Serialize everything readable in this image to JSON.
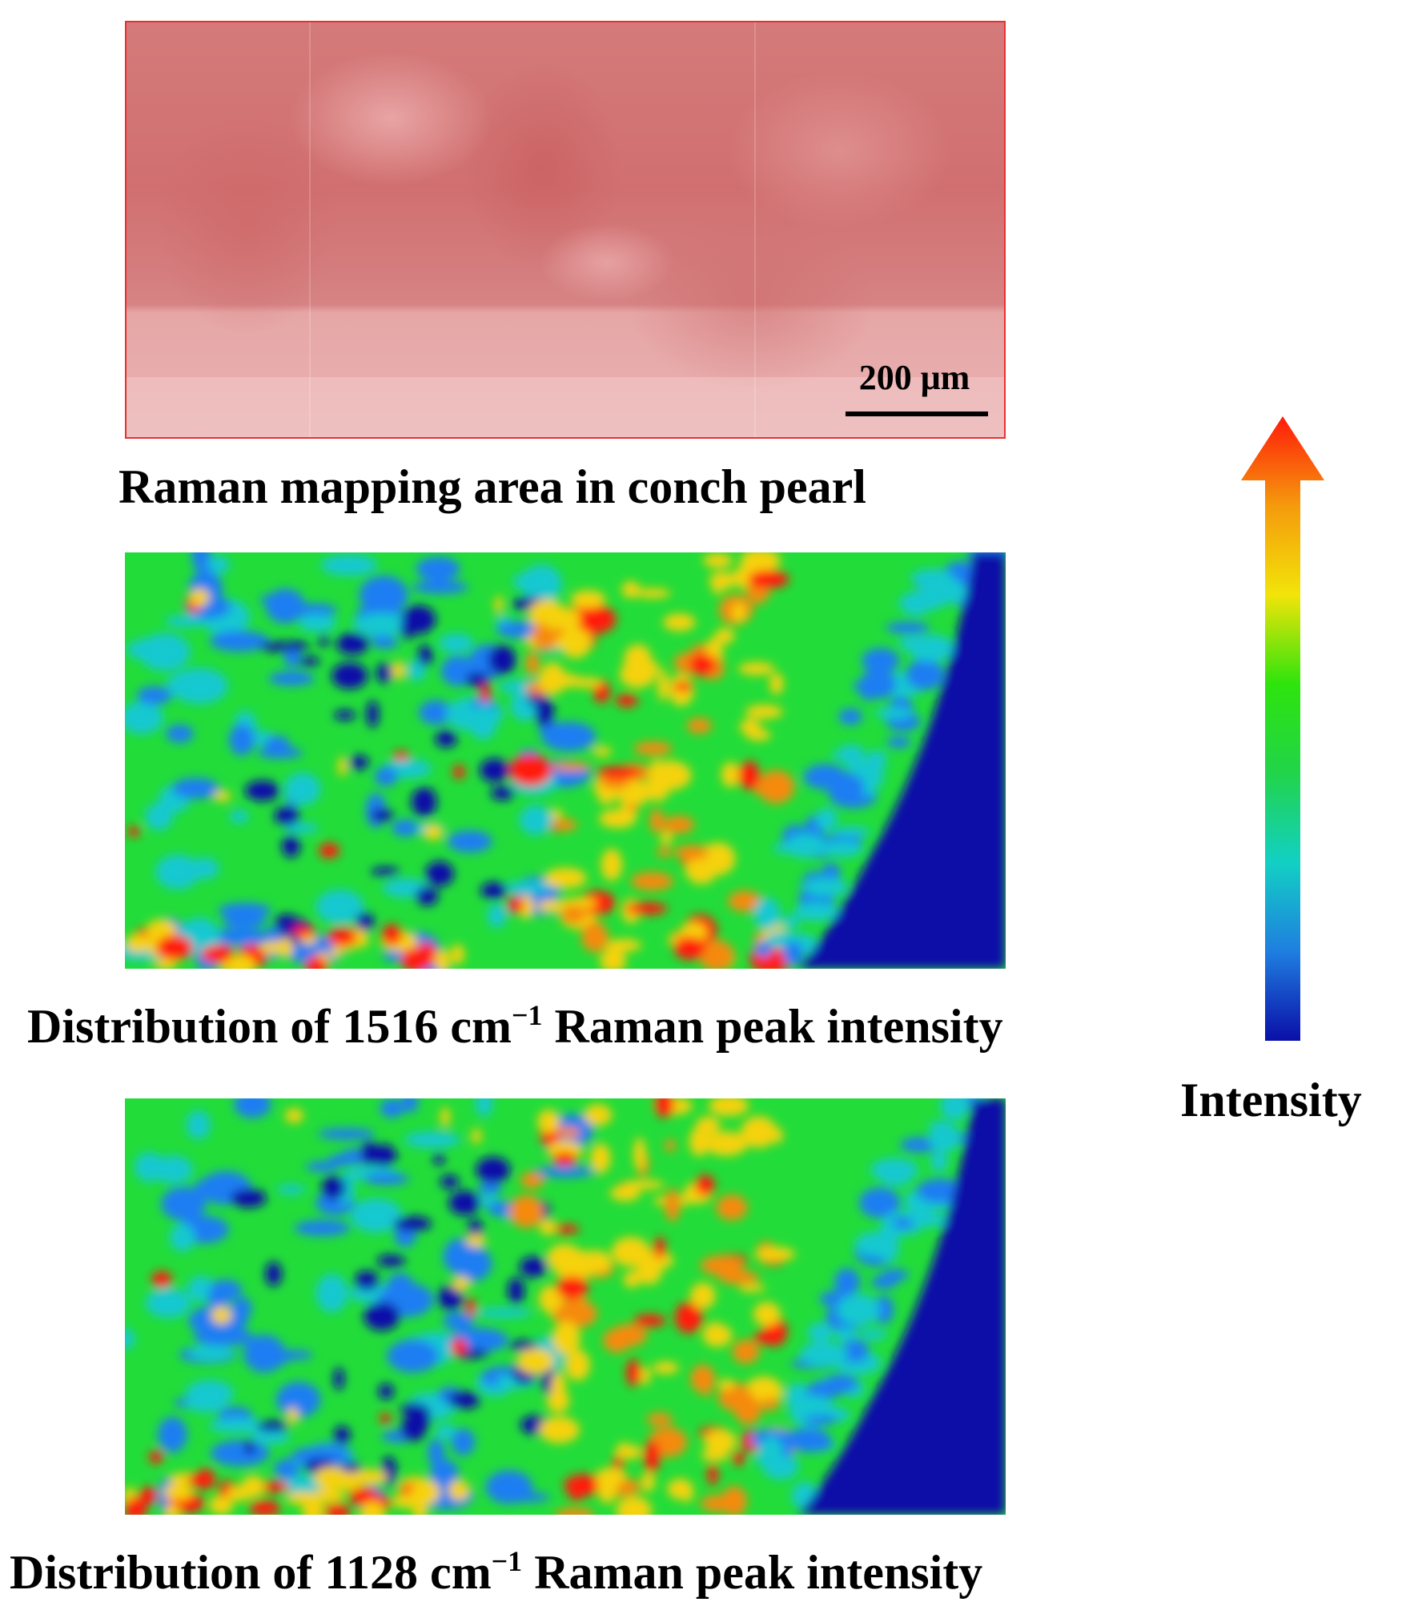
{
  "photo_panel": {
    "scale_bar_label": "200 μm",
    "caption": "Raman mapping area in conch pearl",
    "border_color": "#e8312f"
  },
  "maps": [
    {
      "caption_prefix": "Distribution of 1516 cm",
      "caption_sup": "−1",
      "caption_suffix": " Raman peak intensity"
    },
    {
      "caption_prefix": "Distribution of 1128 cm",
      "caption_sup": "−1",
      "caption_suffix": " Raman peak intensity"
    }
  ],
  "colorbar": {
    "label": "Intensity",
    "direction_icon": "up-arrow-icon",
    "colors": [
      "#0a0fa8",
      "#1f7ee0",
      "#12d0c4",
      "#21d44a",
      "#2ee40c",
      "#f2e40a",
      "#f59a0c",
      "#ff1a0a"
    ]
  },
  "colormap": {
    "low": "#0a0fa8",
    "mid_low": "#1d7ef2",
    "mid": "#22dc3a",
    "mid_high": "#f5d20a",
    "high": "#ff1a0a"
  }
}
